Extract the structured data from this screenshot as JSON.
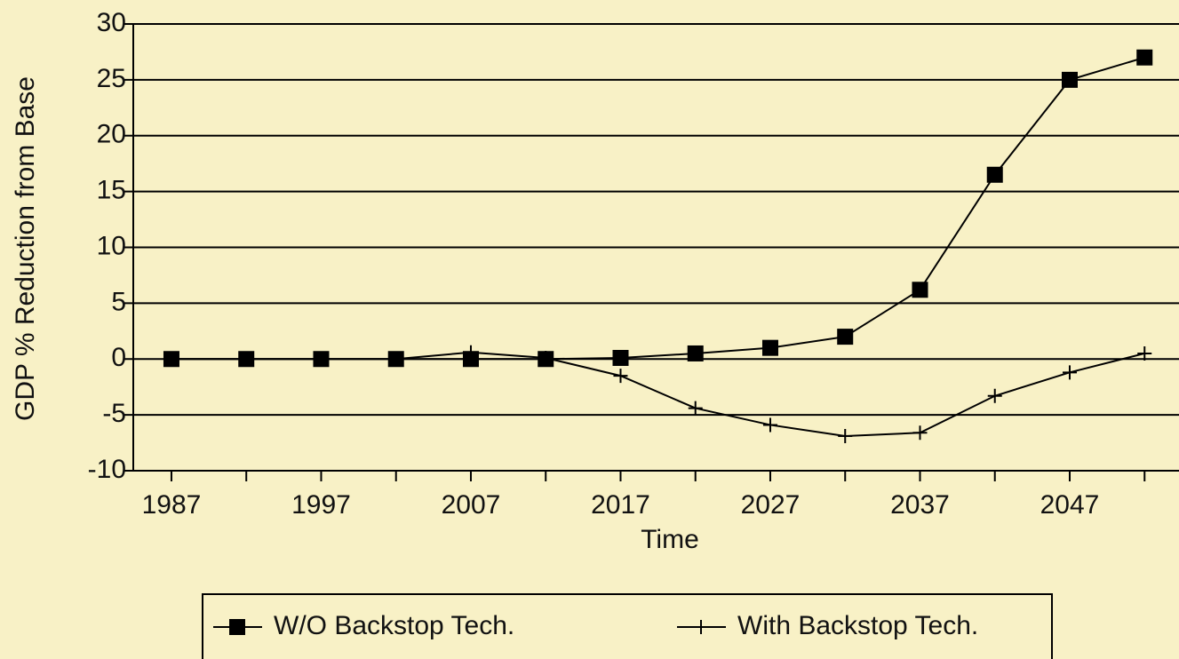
{
  "chart_data": {
    "type": "line",
    "x_label": "Time",
    "y_label": "GDP % Reduction from Base",
    "x": [
      1987,
      1992,
      1997,
      2002,
      2007,
      2012,
      2017,
      2022,
      2027,
      2032,
      2037,
      2042,
      2047,
      2052
    ],
    "series": [
      {
        "name": "W/O Backstop Tech.",
        "color": "#000000",
        "marker": "square",
        "values": [
          0,
          0,
          0,
          0,
          0,
          0,
          0.1,
          0.5,
          1,
          2,
          6.2,
          16.5,
          25,
          27
        ]
      },
      {
        "name": "With Backstop Tech.",
        "color": "#000000",
        "marker": "plus",
        "values": [
          0,
          0,
          0,
          0,
          0.6,
          0.1,
          -1.5,
          -4.4,
          -5.9,
          -6.9,
          -6.6,
          -3.3,
          -1.2,
          0.5
        ]
      }
    ],
    "xlim": [
      1984.45,
      2054.3
    ],
    "xticks": [
      1987,
      1997,
      2007,
      2017,
      2027,
      2037,
      2047
    ],
    "xminor": [
      1992,
      2002,
      2012,
      2022,
      2032,
      2042,
      2052
    ],
    "ylim": [
      -10,
      30
    ],
    "yticks": [
      -10,
      -5,
      0,
      5,
      10,
      15,
      20,
      25,
      30
    ],
    "grid": true,
    "legend": "bottom"
  }
}
